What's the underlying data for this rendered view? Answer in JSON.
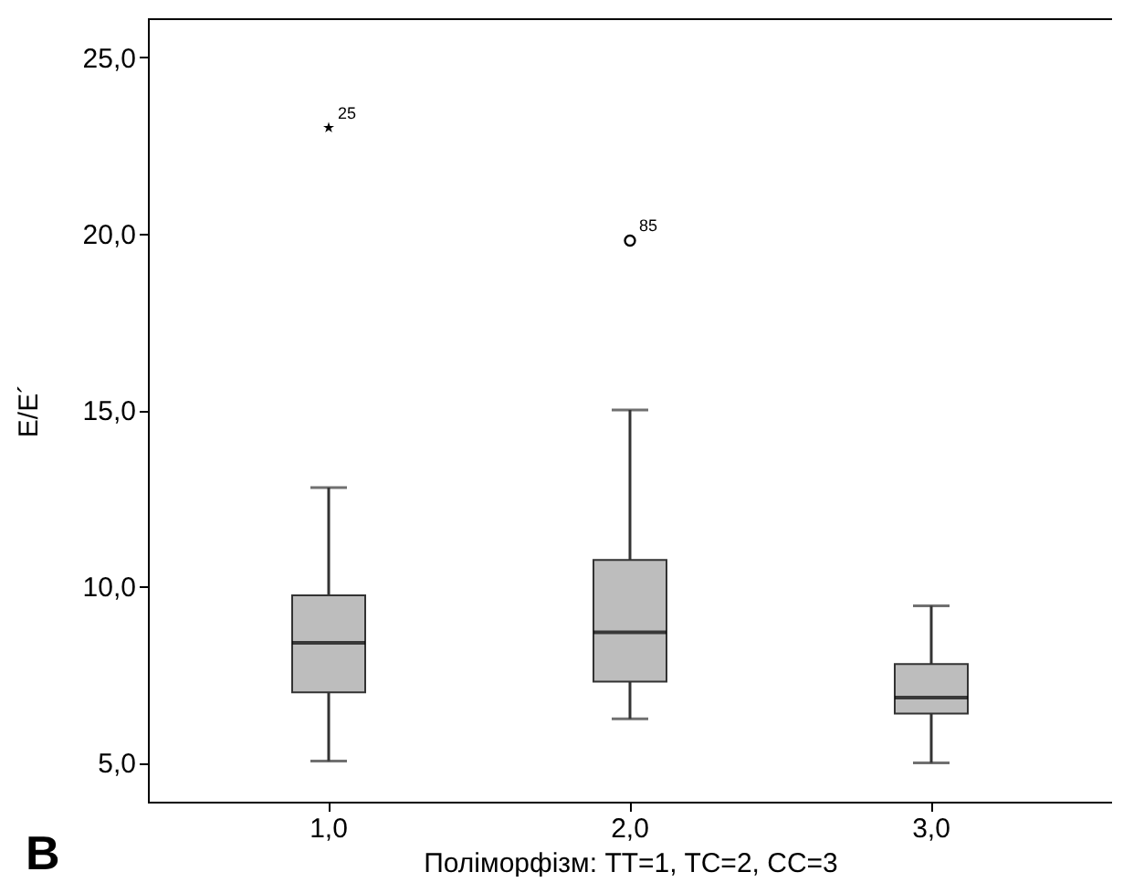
{
  "chart_data": {
    "type": "box",
    "xlabel": "Поліморфізм: TT=1, TC=2, CC=3",
    "ylabel": "E/E´",
    "categories": [
      "1,0",
      "2,0",
      "3,0"
    ],
    "boxes": [
      {
        "low": 5.05,
        "q1": 7.0,
        "median": 8.4,
        "q3": 9.75,
        "high": 12.8
      },
      {
        "low": 6.25,
        "q1": 7.3,
        "median": 8.7,
        "q3": 10.75,
        "high": 15.0
      },
      {
        "low": 5.0,
        "q1": 6.4,
        "median": 6.85,
        "q3": 7.8,
        "high": 9.45
      }
    ],
    "series": [
      {
        "type": "scatter",
        "x": [
          "1,0"
        ],
        "values": [
          23.0
        ],
        "marker": "star",
        "color": "#000000"
      },
      {
        "type": "scatter",
        "x": [
          "2,0"
        ],
        "values": [
          19.8
        ],
        "marker": "circle",
        "color": "#000000"
      }
    ],
    "ylim": [
      3.9,
      26.1
    ],
    "yticks": [
      {
        "value": 5,
        "label": "5,0"
      },
      {
        "value": 10,
        "label": "10,0"
      },
      {
        "value": 15,
        "label": "15,0"
      },
      {
        "value": 20,
        "label": "20,0"
      },
      {
        "value": 25,
        "label": "25,0"
      }
    ],
    "grid": false,
    "annotations": [
      {
        "text": "25",
        "x": "1,0",
        "y": 23.0
      },
      {
        "text": "85",
        "x": "2,0",
        "y": 19.8
      },
      "B"
    ]
  }
}
